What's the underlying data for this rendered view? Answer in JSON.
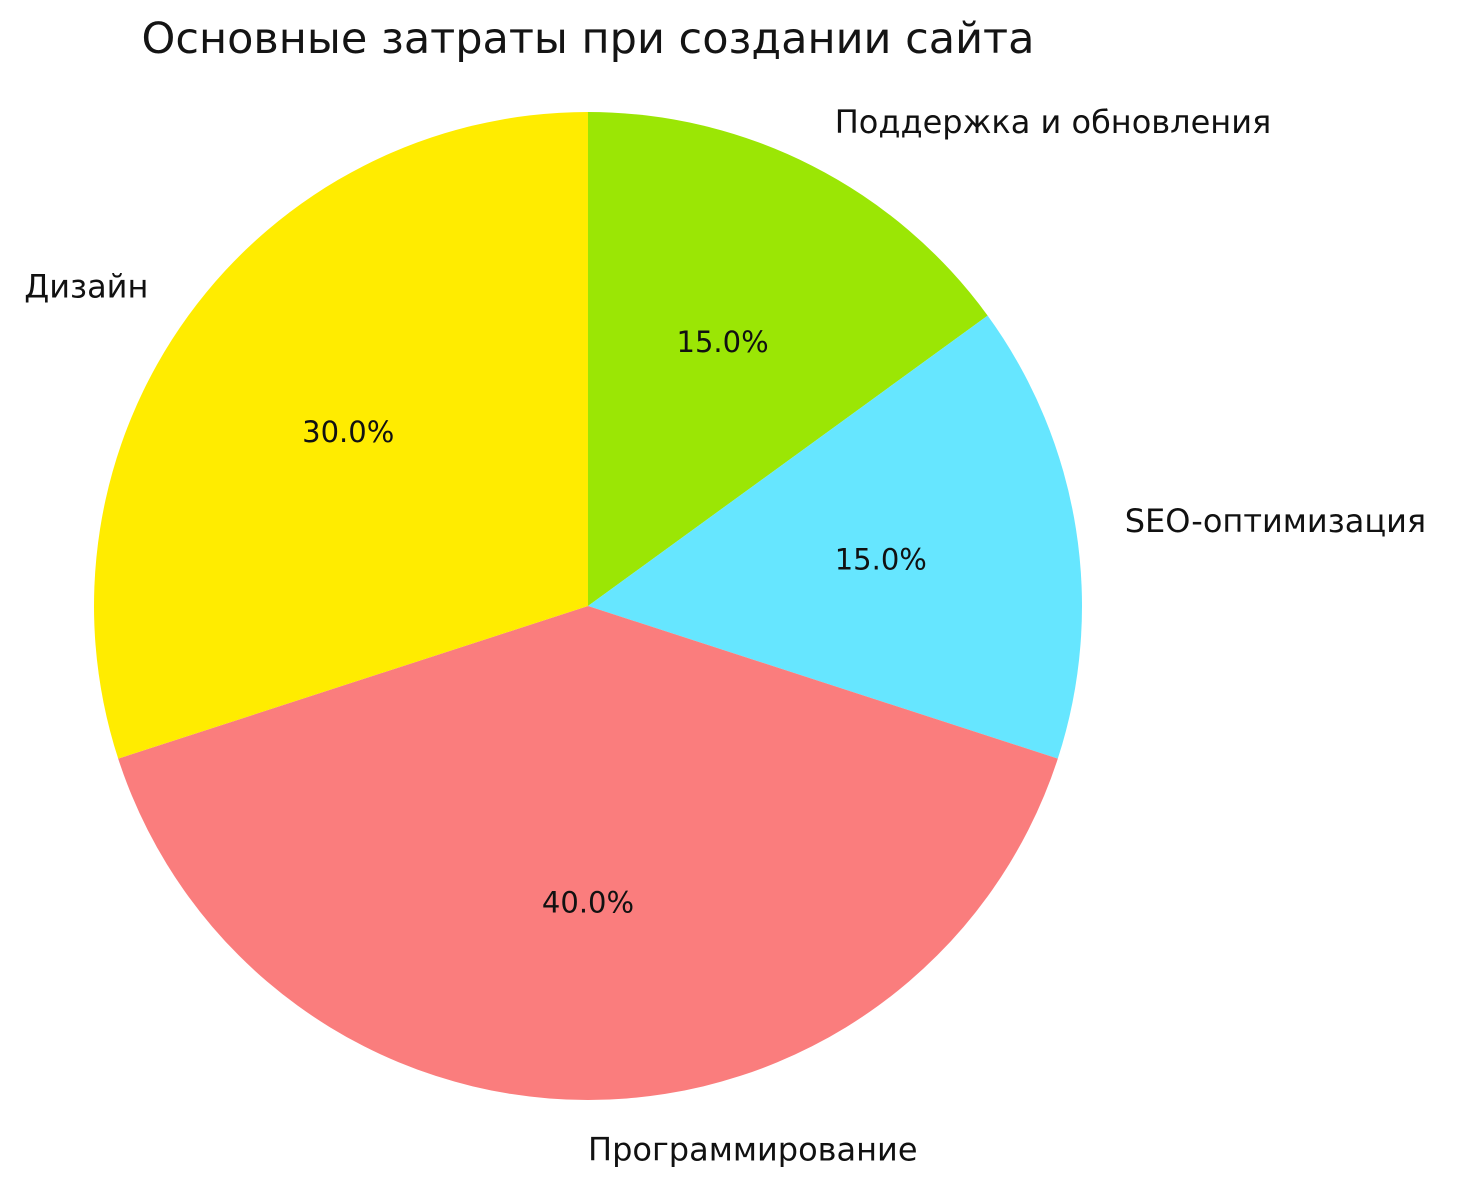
{
  "chart_data": {
    "type": "pie",
    "title": "Основные затраты при создании сайта",
    "categories": [
      "Поддержка и обновления",
      "SEO-оптимизация",
      "Программирование",
      "Дизайн"
    ],
    "values": [
      15.0,
      15.0,
      40.0,
      30.0
    ],
    "percent_labels": [
      "15.0%",
      "15.0%",
      "40.0%",
      "30.0%"
    ],
    "colors": [
      "#9BE605",
      "#66E6FF",
      "#FA7D7D",
      "#FFEC00"
    ],
    "start_angle": "top",
    "direction": "clockwise",
    "label_distance": 1.1,
    "pct_distance": 0.6,
    "legend_position": "none",
    "background_color": "#FFFFFF",
    "text_color": "#111111"
  }
}
